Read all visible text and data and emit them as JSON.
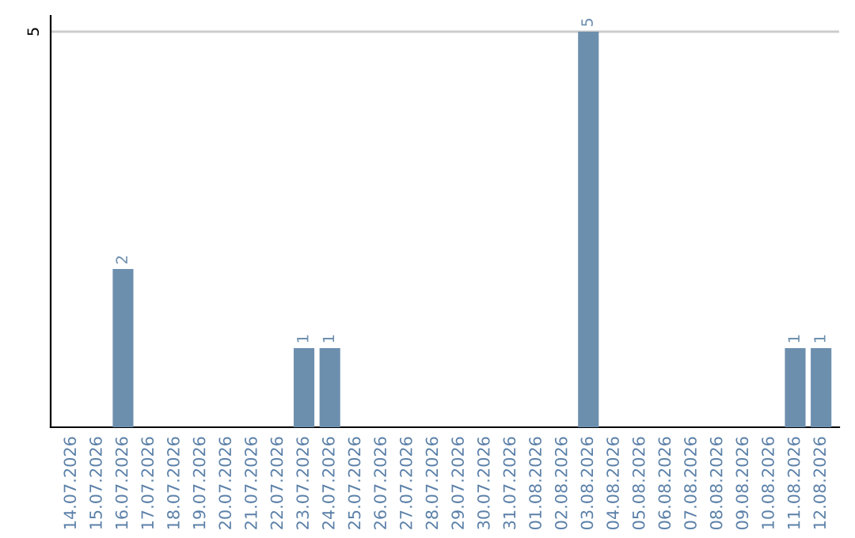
{
  "chart_data": {
    "type": "bar",
    "categories": [
      "14.07.2026",
      "15.07.2026",
      "16.07.2026",
      "17.07.2026",
      "18.07.2026",
      "19.07.2026",
      "20.07.2026",
      "21.07.2026",
      "22.07.2026",
      "23.07.2026",
      "24.07.2026",
      "25.07.2026",
      "26.07.2026",
      "27.07.2026",
      "28.07.2026",
      "29.07.2026",
      "30.07.2026",
      "31.07.2026",
      "01.08.2026",
      "02.08.2026",
      "03.08.2026",
      "04.08.2026",
      "05.08.2026",
      "06.08.2026",
      "07.08.2026",
      "08.08.2026",
      "09.08.2026",
      "10.08.2026",
      "11.08.2026",
      "12.08.2026"
    ],
    "values": [
      0,
      0,
      2,
      0,
      0,
      0,
      0,
      0,
      0,
      1,
      1,
      0,
      0,
      0,
      0,
      0,
      0,
      0,
      0,
      0,
      5,
      0,
      0,
      0,
      0,
      0,
      0,
      0,
      1,
      1
    ],
    "value_labels": [
      null,
      null,
      "2",
      null,
      null,
      null,
      null,
      null,
      null,
      "1",
      "1",
      null,
      null,
      null,
      null,
      null,
      null,
      null,
      null,
      null,
      "5",
      null,
      null,
      null,
      null,
      null,
      null,
      null,
      "1",
      "1"
    ],
    "color": "#6d8fae",
    "ylim": [
      0,
      5.2
    ],
    "yticks": [
      5
    ],
    "grid": "y"
  }
}
